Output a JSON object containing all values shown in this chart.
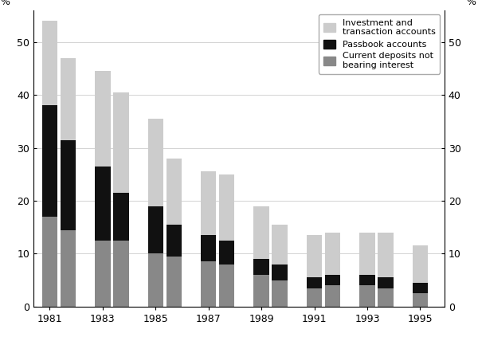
{
  "years": [
    1981,
    1982,
    1983,
    1984,
    1985,
    1986,
    1987,
    1988,
    1989,
    1990,
    1991,
    1992,
    1993,
    1994,
    1995
  ],
  "current_deposits": [
    17.0,
    14.5,
    12.5,
    12.5,
    10.0,
    9.5,
    8.5,
    8.0,
    6.0,
    5.0,
    3.5,
    4.0,
    4.0,
    3.5,
    2.5
  ],
  "passbook_accounts": [
    21.0,
    17.0,
    14.0,
    9.0,
    9.0,
    6.0,
    5.0,
    4.5,
    3.0,
    3.0,
    2.0,
    2.0,
    2.0,
    2.0,
    2.0
  ],
  "investment_accounts": [
    16.0,
    15.5,
    18.0,
    19.0,
    16.5,
    12.5,
    12.0,
    12.5,
    10.0,
    7.5,
    8.0,
    8.0,
    8.0,
    8.5,
    7.0
  ],
  "color_current": "#888888",
  "color_passbook": "#111111",
  "color_investment": "#cccccc",
  "ylim": [
    0,
    56
  ],
  "yticks": [
    0,
    10,
    20,
    30,
    40,
    50
  ],
  "legend_labels": [
    "Investment and\ntransaction accounts",
    "Passbook accounts",
    "Current deposits not\nbearing interest"
  ],
  "bar_width": 0.38,
  "background_color": "#ffffff"
}
